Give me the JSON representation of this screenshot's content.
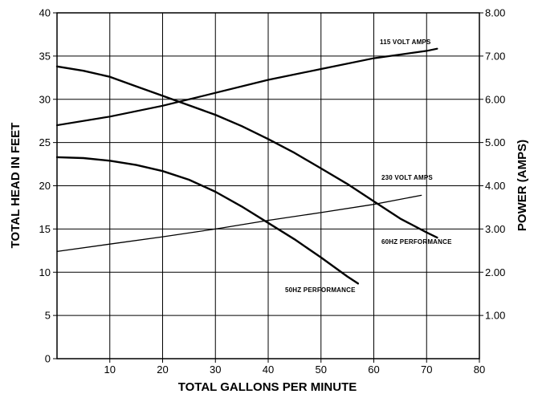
{
  "chart_data": {
    "type": "line",
    "xlabel": "TOTAL GALLONS PER MINUTE",
    "ylabel": "TOTAL HEAD IN FEET",
    "y2label": "POWER (AMPS)",
    "xlim": [
      0,
      80
    ],
    "ylim": [
      0,
      40
    ],
    "y2lim": [
      0,
      8
    ],
    "grid": true,
    "x_ticks": [
      "10",
      "20",
      "30",
      "40",
      "50",
      "60",
      "70",
      "80"
    ],
    "y_ticks": [
      "0",
      "5",
      "10",
      "15",
      "20",
      "25",
      "30",
      "35",
      "40"
    ],
    "y2_ticks": [
      "1.00",
      "2.00",
      "3.00",
      "4.00",
      "5.00",
      "6.00",
      "7.00",
      "8.00"
    ],
    "series": [
      {
        "name": "115 VOLT AMPS",
        "axis": "right",
        "x": [
          0,
          10,
          20,
          30,
          40,
          50,
          60,
          70,
          72
        ],
        "y": [
          5.4,
          5.6,
          5.85,
          6.15,
          6.45,
          6.7,
          6.95,
          7.12,
          7.17
        ]
      },
      {
        "name": "230 VOLT AMPS",
        "axis": "right",
        "x": [
          0,
          10,
          20,
          30,
          40,
          50,
          60,
          69
        ],
        "y": [
          2.48,
          2.65,
          2.82,
          3.0,
          3.2,
          3.38,
          3.57,
          3.78
        ]
      },
      {
        "name": "60HZ PERFORMANCE",
        "axis": "left",
        "x": [
          0,
          5,
          10,
          15,
          20,
          25,
          30,
          35,
          40,
          45,
          50,
          55,
          60,
          65,
          70,
          72
        ],
        "y": [
          33.8,
          33.3,
          32.6,
          31.5,
          30.4,
          29.3,
          28.2,
          26.9,
          25.4,
          23.8,
          22.0,
          20.2,
          18.2,
          16.2,
          14.6,
          14.0
        ]
      },
      {
        "name": "50HZ PERFORMANCE",
        "axis": "left",
        "x": [
          0,
          5,
          10,
          15,
          20,
          25,
          30,
          35,
          40,
          45,
          50,
          55,
          57
        ],
        "y": [
          23.3,
          23.2,
          22.9,
          22.4,
          21.7,
          20.7,
          19.3,
          17.6,
          15.7,
          13.8,
          11.7,
          9.5,
          8.7
        ]
      }
    ],
    "annotations": [
      {
        "text": "115 VOLT AMPS",
        "series": "115 VOLT AMPS"
      },
      {
        "text": "230 VOLT AMPS",
        "series": "230 VOLT AMPS"
      },
      {
        "text": "60HZ PERFORMANCE",
        "series": "60HZ PERFORMANCE"
      },
      {
        "text": "50HZ PERFORMANCE",
        "series": "50HZ PERFORMANCE"
      }
    ]
  }
}
